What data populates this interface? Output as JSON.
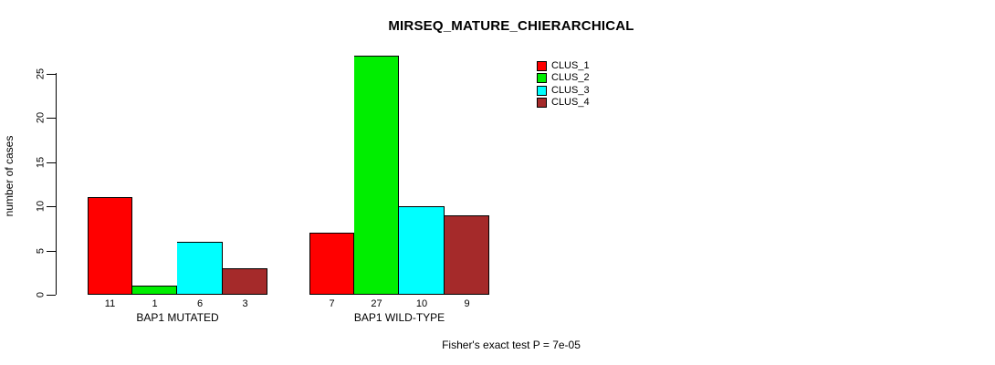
{
  "chart_data": {
    "type": "bar",
    "title": "MIRSEQ_MATURE_CHIERARCHICAL",
    "ylabel": "number of cases",
    "xlabel": "",
    "ylim": [
      0,
      27
    ],
    "yticks": [
      0,
      5,
      10,
      15,
      20,
      25
    ],
    "grid": false,
    "legend_position": "top-right",
    "legend_border": false,
    "categories": [
      "BAP1 MUTATED",
      "BAP1 WILD-TYPE"
    ],
    "series": [
      {
        "name": "CLUS_1",
        "color": "#ff0000",
        "values": [
          11,
          7
        ]
      },
      {
        "name": "CLUS_2",
        "color": "#00ee00",
        "values": [
          1,
          27
        ]
      },
      {
        "name": "CLUS_3",
        "color": "#00ffff",
        "values": [
          6,
          10
        ]
      },
      {
        "name": "CLUS_4",
        "color": "#a52a2a",
        "values": [
          3,
          9
        ]
      }
    ],
    "bar_value_labels_visible": true,
    "bar_border_color": "#000000",
    "footnote": "Fisher's exact test P = 7e-05"
  }
}
